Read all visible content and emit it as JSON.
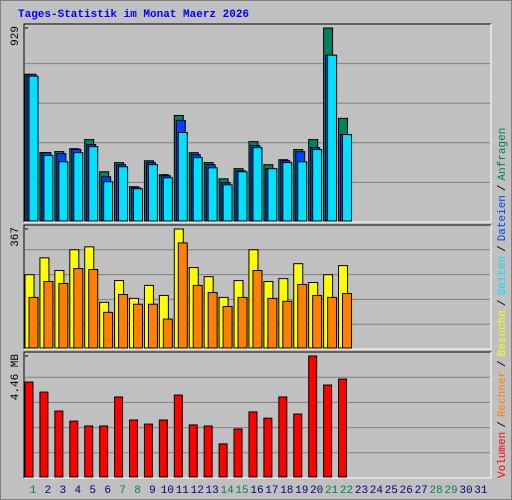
{
  "legend_separator": "/",
  "chart_data": [
    {
      "type": "bar",
      "title": "Tages-Statistik im Monat Maerz 2026",
      "ylim": [
        0,
        929
      ],
      "yticks": [
        929
      ],
      "series": [
        {
          "name": "Anfragen",
          "color": "#00805c",
          "values": [
            706,
            329,
            334,
            348,
            392,
            237,
            281,
            165,
            290,
            223,
            508,
            329,
            281,
            203,
            252,
            382,
            271,
            295,
            344,
            392,
            929,
            494,
            null,
            null,
            null,
            null,
            null,
            null,
            null,
            null,
            null
          ]
        },
        {
          "name": "Dateien",
          "color": "#0040ff",
          "values": [
            706,
            329,
            324,
            344,
            368,
            213,
            271,
            160,
            281,
            218,
            484,
            319,
            271,
            184,
            242,
            363,
            252,
            290,
            334,
            353,
            798,
            416,
            null,
            null,
            null,
            null,
            null,
            null,
            null,
            null,
            null
          ]
        },
        {
          "name": "Seiten",
          "color": "#00e0ff",
          "values": [
            697,
            315,
            285,
            329,
            358,
            189,
            261,
            155,
            271,
            208,
            426,
            305,
            256,
            174,
            237,
            353,
            252,
            281,
            285,
            344,
            798,
            416,
            null,
            null,
            null,
            null,
            null,
            null,
            null,
            null,
            null
          ]
        }
      ]
    },
    {
      "type": "bar",
      "ylim": [
        0,
        367
      ],
      "yticks": [
        367
      ],
      "series": [
        {
          "name": "Besuche",
          "color": "#ffff00",
          "values": [
            226,
            278,
            239,
            303,
            312,
            141,
            208,
            153,
            193,
            162,
            367,
            248,
            220,
            156,
            208,
            303,
            205,
            214,
            260,
            202,
            226,
            254,
            null,
            null,
            null,
            null,
            null,
            null,
            null,
            null,
            null
          ]
        },
        {
          "name": "Rechner",
          "color": "#ff8000",
          "values": [
            156,
            205,
            199,
            245,
            242,
            110,
            165,
            135,
            135,
            89,
            324,
            193,
            171,
            128,
            156,
            239,
            153,
            144,
            196,
            162,
            156,
            168,
            null,
            null,
            null,
            null,
            null,
            null,
            null,
            null,
            null
          ]
        }
      ]
    },
    {
      "type": "bar",
      "ylim": [
        0,
        4.46
      ],
      "yticks": [
        {
          "value": 4.46,
          "label": "4.46 MB"
        }
      ],
      "categories": [
        "1",
        "2",
        "3",
        "4",
        "5",
        "6",
        "7",
        "8",
        "9",
        "10",
        "11",
        "12",
        "13",
        "14",
        "15",
        "16",
        "17",
        "18",
        "19",
        "20",
        "21",
        "22",
        "23",
        "24",
        "25",
        "26",
        "27",
        "28",
        "29",
        "30",
        "31"
      ],
      "label_colors": [
        "#00805c",
        "#000080",
        "#000080",
        "#000080",
        "#000080",
        "#000080",
        "#00805c",
        "#00805c",
        "#000080",
        "#000080",
        "#000080",
        "#000080",
        "#000080",
        "#00805c",
        "#00805c",
        "#000080",
        "#000080",
        "#000080",
        "#000080",
        "#000080",
        "#00805c",
        "#00805c",
        "#000080",
        "#000080",
        "#000080",
        "#000080",
        "#000080",
        "#00805c",
        "#00805c",
        "#000080",
        "#000080"
      ],
      "series": [
        {
          "name": "Volumen",
          "color": "#ff0000",
          "values": [
            3.5,
            3.13,
            2.43,
            2.06,
            1.88,
            1.88,
            2.95,
            2.1,
            1.95,
            2.1,
            3.02,
            1.92,
            1.88,
            1.22,
            1.77,
            2.4,
            2.17,
            2.95,
            2.32,
            4.46,
            3.39,
            3.61,
            null,
            null,
            null,
            null,
            null,
            null,
            null,
            null,
            null
          ]
        }
      ]
    }
  ]
}
